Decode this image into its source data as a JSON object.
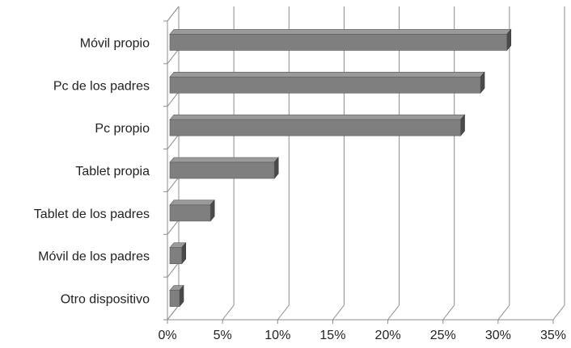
{
  "chart_data": {
    "type": "bar",
    "orientation": "horizontal",
    "style": "3d",
    "categories": [
      "Móvil propio",
      "Pc de los padres",
      "Pc propio",
      "Tablet propia",
      "Tablet de los padres",
      "Móvil de los padres",
      "Otro dispositivo"
    ],
    "values": [
      30.8,
      28.4,
      26.6,
      9.7,
      3.9,
      1.3,
      1.1
    ],
    "xlim": [
      0,
      35
    ],
    "xticks": [
      "0%",
      "5%",
      "10%",
      "15%",
      "20%",
      "25%",
      "30%",
      "35%"
    ],
    "grid": true,
    "legend": "none",
    "title": "",
    "xlabel": "",
    "ylabel": "",
    "colors": {
      "bar_face": "#7f7f7f",
      "bar_top": "#9a9a9a",
      "bar_side": "#4a4a4a",
      "grid": "#8c8c8c",
      "axis": "#8c8c8c"
    }
  }
}
